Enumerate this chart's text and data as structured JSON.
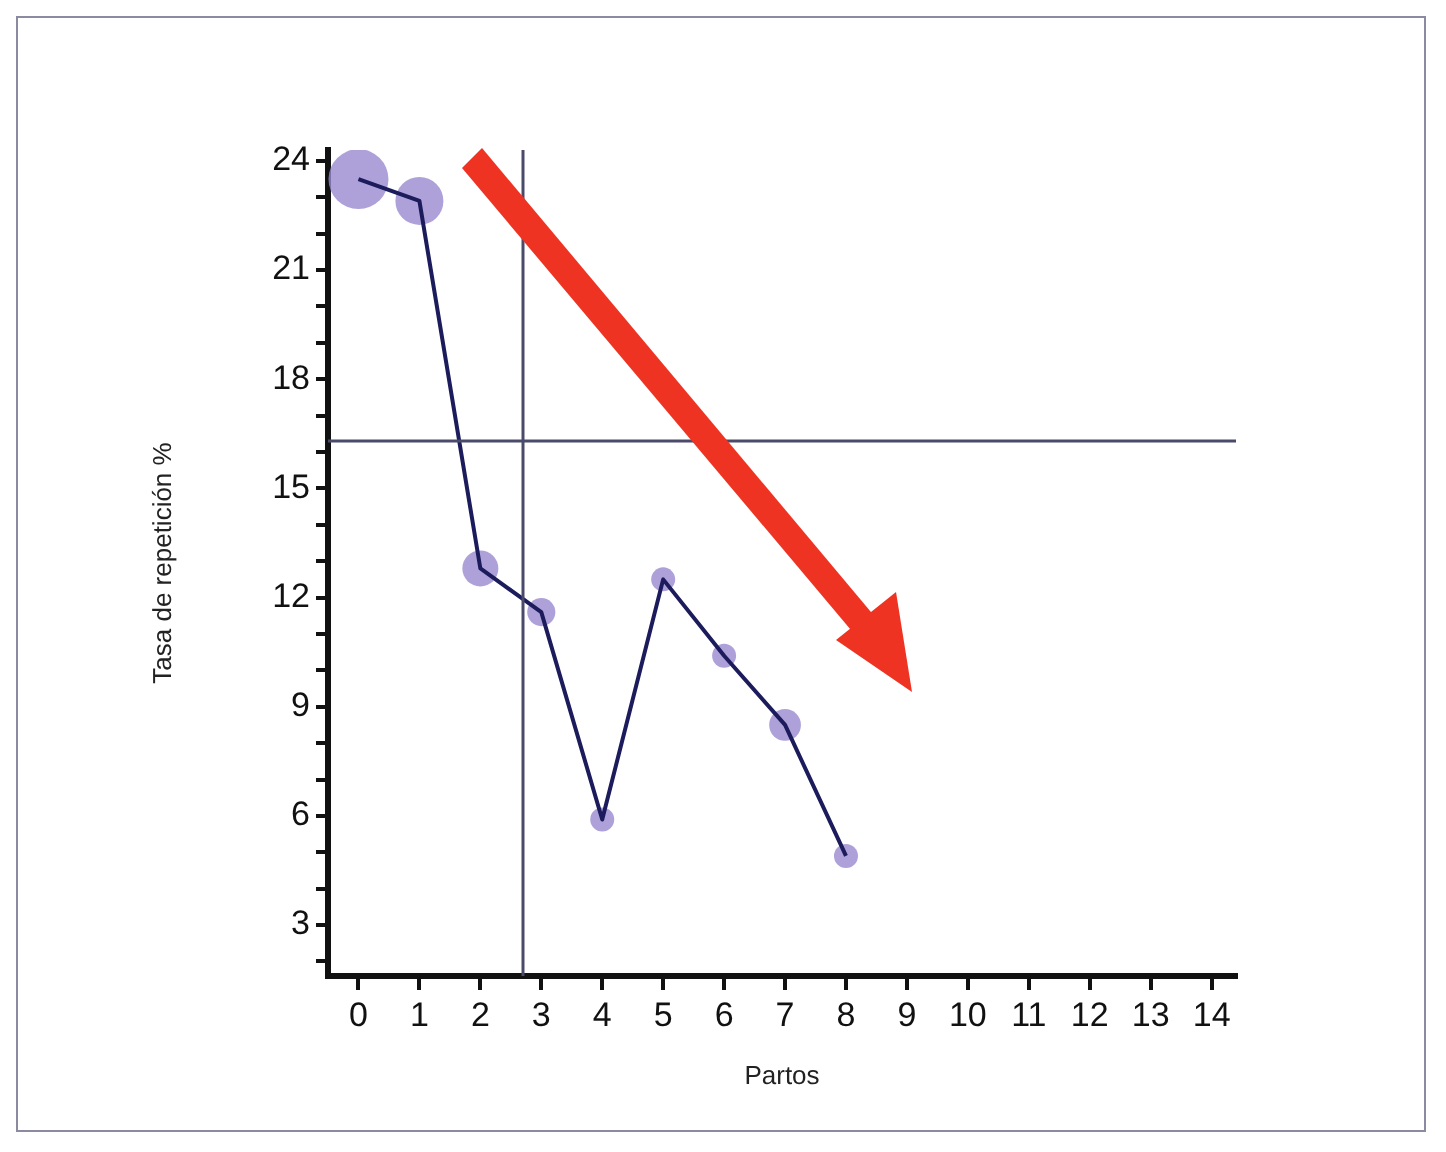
{
  "chart_data": {
    "type": "line",
    "xlabel": "Partos",
    "ylabel": "Tasa de repetición %",
    "x": [
      0,
      1,
      2,
      3,
      4,
      5,
      6,
      7,
      8
    ],
    "series": [
      {
        "type": "bubble",
        "color": "#9a8ad0",
        "values": [
          23.5,
          22.9,
          12.8,
          11.6,
          5.9,
          12.5,
          10.4,
          8.5,
          4.9
        ],
        "sizes": [
          1,
          0.64,
          0.36,
          0.22,
          0.16,
          0.16,
          0.16,
          0.28,
          0.16
        ]
      },
      {
        "type": "line",
        "color": "#1c1c5c",
        "values": [
          23.5,
          22.9,
          12.8,
          11.6,
          5.9,
          12.5,
          10.4,
          8.5,
          4.9
        ]
      }
    ],
    "xlim": [
      -0.5,
      14.4
    ],
    "xticks": [
      0,
      1,
      2,
      3,
      4,
      5,
      6,
      7,
      8,
      9,
      10,
      11,
      12,
      13,
      14
    ],
    "ylim": [
      1.6,
      24.3
    ],
    "yticks": [
      {
        "value": 2,
        "label": null
      },
      3,
      {
        "value": 4,
        "label": null
      },
      {
        "value": 5,
        "label": null
      },
      6,
      {
        "value": 7,
        "label": null
      },
      {
        "value": 8,
        "label": null
      },
      9,
      {
        "value": 10,
        "label": null
      },
      {
        "value": 11,
        "label": null
      },
      12,
      {
        "value": 13,
        "label": null
      },
      {
        "value": 14,
        "label": null
      },
      15,
      {
        "value": 16,
        "label": null
      },
      {
        "value": 17,
        "label": null
      },
      18,
      {
        "value": 19,
        "label": null
      },
      {
        "value": 20,
        "label": null
      },
      21,
      {
        "value": 22,
        "label": null
      },
      {
        "value": 23,
        "label": null
      },
      24
    ],
    "ref_lines": [
      {
        "axis": "x",
        "value": 2.7,
        "color": "#4a4a6a"
      },
      {
        "axis": "y",
        "value": 16.3,
        "color": "#4a4a6a"
      }
    ],
    "grid": false,
    "legend": false,
    "line_style": "solid"
  }
}
